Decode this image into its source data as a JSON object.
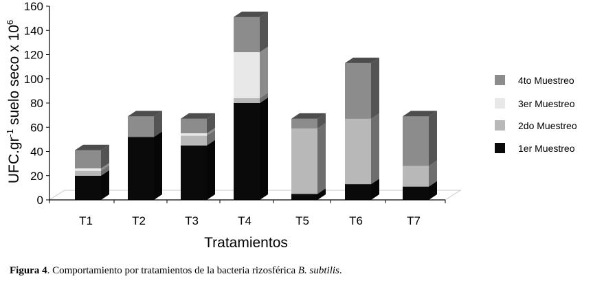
{
  "chart_data": {
    "type": "bar",
    "stacked": true,
    "three_d": true,
    "categories": [
      "T1",
      "T2",
      "T3",
      "T4",
      "T5",
      "T6",
      "T7"
    ],
    "series": [
      {
        "name": "1er Muestreo",
        "color": "#0a0a0a",
        "values": [
          20,
          52,
          45,
          80,
          5,
          13,
          11
        ]
      },
      {
        "name": "2do Muestreo",
        "color": "#b8b8b8",
        "values": [
          4,
          0,
          8,
          4,
          54,
          54,
          17
        ]
      },
      {
        "name": "3er Muestreo",
        "color": "#e8e8e8",
        "values": [
          2,
          0,
          2,
          38,
          0,
          0,
          0
        ]
      },
      {
        "name": "4to Muestreo",
        "color": "#8c8c8c",
        "values": [
          15,
          17,
          12,
          29,
          8,
          46,
          41
        ]
      }
    ],
    "y_ticks": [
      "0",
      "20",
      "40",
      "60",
      "80",
      "100",
      "120",
      "140",
      "160"
    ],
    "ylim": [
      0,
      160
    ],
    "xlabel": "Tratamientos",
    "ylabel": "UFC.gr-1 suelo seco x 106",
    "ylabel_parts": {
      "a": "UFC.gr",
      "sup1": "-1",
      "b": " suelo seco x 10",
      "sup2": "6"
    },
    "legend_position": "right",
    "legend_order": [
      "4to Muestreo",
      "3er Muestreo",
      "2do Muestreo",
      "1er Muestreo"
    ],
    "grid": false
  },
  "caption": {
    "label": "Figura 4",
    "text": ". Comportamiento por tratamientos de la bacteria rizosférica ",
    "species": "B. subtilis",
    "end": "."
  }
}
